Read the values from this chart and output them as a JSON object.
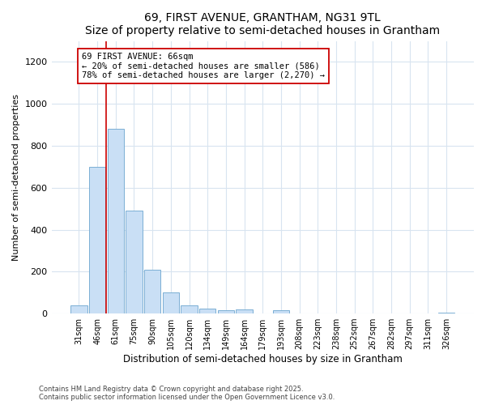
{
  "title1": "69, FIRST AVENUE, GRANTHAM, NG31 9TL",
  "title2": "Size of property relative to semi-detached houses in Grantham",
  "xlabel": "Distribution of semi-detached houses by size in Grantham",
  "ylabel": "Number of semi-detached properties",
  "categories": [
    "31sqm",
    "46sqm",
    "61sqm",
    "75sqm",
    "90sqm",
    "105sqm",
    "120sqm",
    "134sqm",
    "149sqm",
    "164sqm",
    "179sqm",
    "193sqm",
    "208sqm",
    "223sqm",
    "238sqm",
    "252sqm",
    "267sqm",
    "282sqm",
    "297sqm",
    "311sqm",
    "326sqm"
  ],
  "values": [
    40,
    700,
    880,
    490,
    210,
    100,
    40,
    25,
    15,
    20,
    0,
    15,
    0,
    0,
    0,
    0,
    0,
    0,
    0,
    0,
    5
  ],
  "bar_color": "#c9dff5",
  "bar_edge_color": "#7bafd4",
  "vline_x": 1.5,
  "vline_color": "#cc0000",
  "annotation_title": "69 FIRST AVENUE: 66sqm",
  "annotation_line2": "← 20% of semi-detached houses are smaller (586)",
  "annotation_line3": "78% of semi-detached houses are larger (2,270) →",
  "annotation_box_color": "white",
  "annotation_box_edge": "#cc0000",
  "ylim": [
    0,
    1300
  ],
  "yticks": [
    0,
    200,
    400,
    600,
    800,
    1000,
    1200
  ],
  "footer": "Contains HM Land Registry data © Crown copyright and database right 2025.\nContains public sector information licensed under the Open Government Licence v3.0.",
  "bg_color": "#ffffff",
  "grid_color": "#d8e4f0"
}
